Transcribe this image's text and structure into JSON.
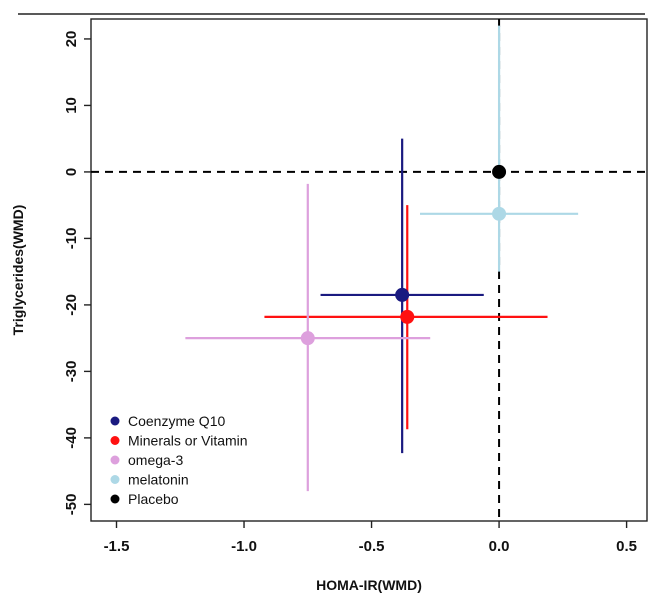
{
  "chart_data": {
    "type": "scatter",
    "title": "",
    "xlabel": "HOMA-IR(WMD)",
    "ylabel": "Triglycerides(WMD)",
    "xlim": [
      -1.6,
      0.58
    ],
    "ylim": [
      -52.5,
      23
    ],
    "x_ticks": [
      "-1.5",
      "-1.0",
      "-0.5",
      "0.0",
      "0.5"
    ],
    "y_ticks": [
      "-50",
      "-40",
      "-30",
      "-20",
      "-10",
      "0",
      "10",
      "20"
    ],
    "reference_lines": {
      "x": 0,
      "y": 0,
      "style": "dashed"
    },
    "grid": false,
    "legend_position": "bottom-left",
    "series": [
      {
        "name": "Coenzyme Q10",
        "color": "#1a1a80",
        "x": -0.38,
        "y": -18.5,
        "x_ci": [
          -0.7,
          -0.06
        ],
        "y_ci": [
          -42.3,
          5.0
        ]
      },
      {
        "name": "Minerals or Vitamin",
        "color": "#ff1111",
        "x": -0.36,
        "y": -21.8,
        "x_ci": [
          -0.92,
          0.19
        ],
        "y_ci": [
          -38.7,
          -5.0
        ]
      },
      {
        "name": "omega-3",
        "color": "#dda0dd",
        "x": -0.75,
        "y": -25.0,
        "x_ci": [
          -1.23,
          -0.27
        ],
        "y_ci": [
          -48.0,
          -1.8
        ]
      },
      {
        "name": "melatonin",
        "color": "#add8e6",
        "x": 0.0,
        "y": -6.3,
        "x_ci": [
          -0.31,
          0.31
        ],
        "y_ci": [
          -15.0,
          22.0
        ]
      },
      {
        "name": "Placebo",
        "color": "#000000",
        "x": 0.0,
        "y": 0.0
      }
    ]
  }
}
